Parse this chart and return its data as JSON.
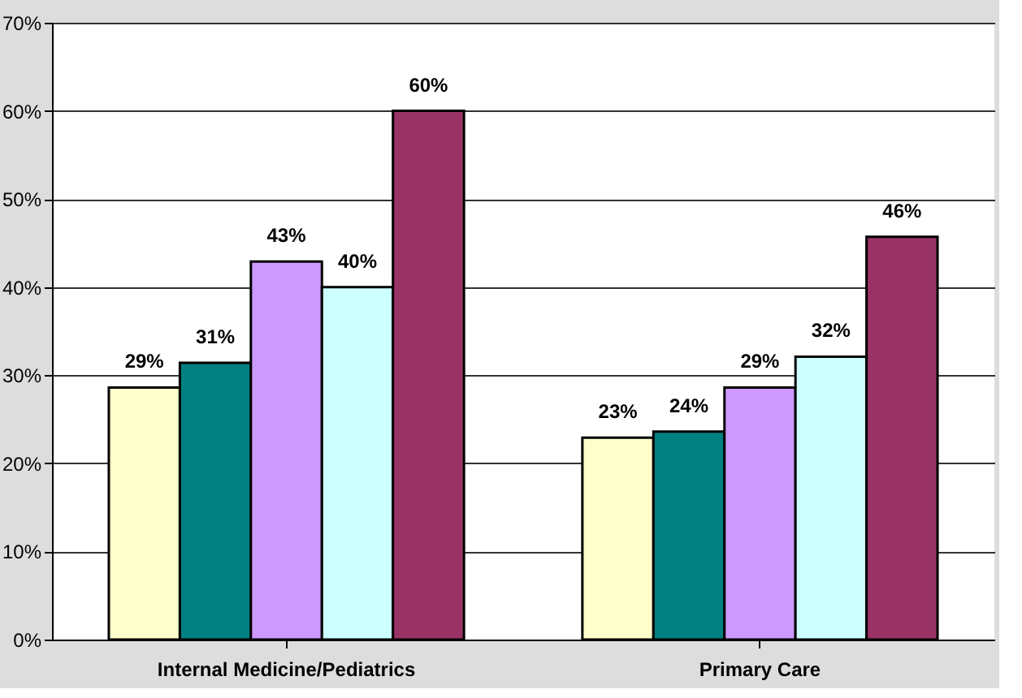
{
  "chart_data": {
    "type": "bar",
    "categories": [
      "Internal Medicine/Pediatrics",
      "Primary Care"
    ],
    "series": [
      {
        "color": "#ffffcc",
        "values": [
          28.6,
          22.9
        ],
        "value_labels": [
          "29%",
          "23%"
        ]
      },
      {
        "color": "#008080",
        "values": [
          31.4,
          23.6
        ],
        "value_labels": [
          "31%",
          "24%"
        ]
      },
      {
        "color": "#cc99ff",
        "values": [
          42.9,
          28.6
        ],
        "value_labels": [
          "43%",
          "29%"
        ]
      },
      {
        "color": "#ccffff",
        "values": [
          40,
          32.1
        ],
        "value_labels": [
          "40%",
          "32%"
        ]
      },
      {
        "color": "#993366",
        "values": [
          60,
          45.7
        ],
        "value_labels": [
          "60%",
          "46%"
        ]
      }
    ],
    "ylim": [
      0,
      70
    ],
    "yticks": [
      {
        "value": 0,
        "label": "0%"
      },
      {
        "value": 10,
        "label": "10%"
      },
      {
        "value": 20,
        "label": "20%"
      },
      {
        "value": 30,
        "label": "30%"
      },
      {
        "value": 40,
        "label": "40%"
      },
      {
        "value": 50,
        "label": "50%"
      },
      {
        "value": 60,
        "label": "60%"
      },
      {
        "value": 70,
        "label": "70%"
      }
    ],
    "grid": "y",
    "legend": false
  }
}
